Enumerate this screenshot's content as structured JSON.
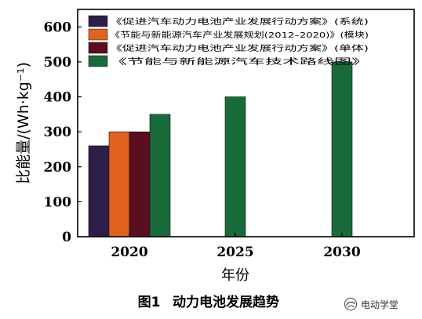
{
  "chart_data": {
    "type": "bar",
    "title": "",
    "xlabel": "年份",
    "ylabel": "比能量/(Wh·kg⁻¹)",
    "ylim": [
      0,
      650
    ],
    "yticks": [
      0,
      100,
      200,
      300,
      400,
      500,
      600
    ],
    "categories": [
      "2020",
      "2025",
      "2030"
    ],
    "series": [
      {
        "name": "《促进汽车动力电池产业发展行动方案》(系统)",
        "color": "#2e1f4a",
        "values": [
          260,
          null,
          null
        ]
      },
      {
        "name": "《节能与新能源汽车产业发展规划(2012–2020)》(模块)",
        "color": "#e0621e",
        "values": [
          300,
          null,
          null
        ]
      },
      {
        "name": "《促进汽车动力电池产业发展行动方案》(单体)",
        "color": "#5a0f20",
        "values": [
          300,
          null,
          null
        ]
      },
      {
        "name": "《节能与新能源汽车技术路线图》",
        "color": "#1a6b3a",
        "values": [
          350,
          400,
          500
        ]
      }
    ],
    "legend_position": "top-left",
    "grid": false
  },
  "caption": {
    "figure_label": "图1",
    "text": "动力电池发展趋势"
  },
  "watermark": {
    "text": "电动学堂",
    "icon": "swirl-logo-icon"
  }
}
